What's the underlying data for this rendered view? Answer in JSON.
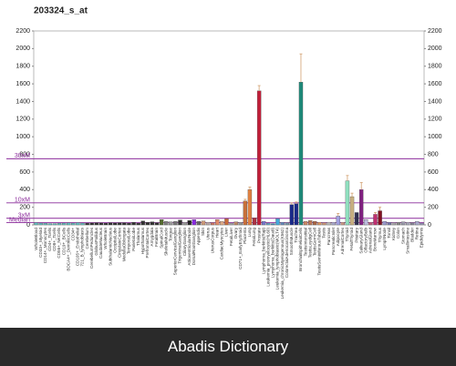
{
  "chart_data": {
    "type": "bar",
    "title": "203324_s_at",
    "categories": [
      "WholeBlood",
      "CD33+_Myeloid",
      "CD14+_Monocytes",
      "CD4+_Tcells",
      "CD8+_Tcells",
      "CD56+_NKCells",
      "CD19+_BCells",
      "BDCA4+_DentriticCells",
      "CD34+",
      "CD105+_Endothelial",
      "721_B_lymphoblasts",
      "Cerebellum",
      "CerebellumPeduncles",
      "GlobusPallidus",
      "CaudateNucleus",
      "WholeBrain",
      "SubthalamicNucleus",
      "OccipitalLobe",
      "CingulateCortex",
      "MedullaOblongata",
      "TemporalLobe",
      "ParietalLobe",
      "Thalamus",
      "Hypothalamus",
      "PrefrontalCortex",
      "Amygdala",
      "FetalBrain",
      "SpinalCord",
      "SkeletalMuscle",
      "Tongue",
      "SuperiorCervicalGanglion",
      "TrigeminalGanglion",
      "CiliaryGanglion",
      "AtrioventricularNode",
      "DorsalRootGanglion",
      "Appendix",
      "Skin",
      "Uterus",
      "UterusCorpus",
      "Heart",
      "CardiacMyocytes",
      "Liver",
      "FetalLiver",
      "Ovary",
      "CD71+_EarlyErythroid",
      "Placenta",
      "Lung",
      "FetalLung",
      "Prostate",
      "Lymphoma_burkitts(Raji)",
      "Leukemia_promyelocytic(HL60)",
      "Lymphoma_burkitts(Daudi)",
      "Leukemia_lymphoblastic(MOLT4)",
      "Leukemia_chronicMyelogenous(K562)",
      "ColorectalAdenocarcinoma",
      "SmoothMuscle",
      "Trachea",
      "BronchialEpithelialCells",
      "TestisInterstitial",
      "TestisLeydigCell",
      "TestisGermCell",
      "TestisSeminiferousTubule",
      "Testis",
      "Pancreas",
      "PancreaticIslet",
      "Adipocyte",
      "AdrenalCortex",
      "Thyroid",
      "FetalThyroid",
      "Pituitary",
      "SalivaryGland",
      "OlfactoryBulb",
      "AdrenalGland",
      "BoneMarrow",
      "Thymus",
      "LymphNode",
      "Tonsil",
      "Kidney",
      "Colon",
      "Stomach",
      "SmallIntestine",
      "Bladder",
      "Retina",
      "Epididymis"
    ],
    "values": [
      25,
      20,
      18,
      15,
      15,
      18,
      20,
      22,
      20,
      25,
      20,
      20,
      22,
      25,
      22,
      20,
      25,
      22,
      25,
      25,
      20,
      30,
      20,
      45,
      30,
      35,
      25,
      60,
      40,
      35,
      40,
      55,
      30,
      50,
      60,
      40,
      45,
      30,
      25,
      60,
      40,
      70,
      20,
      35,
      30,
      270,
      400,
      80,
      1520,
      40,
      20,
      15,
      70,
      30,
      25,
      230,
      240,
      1620,
      40,
      50,
      40,
      30,
      25,
      30,
      30,
      100,
      30,
      500,
      320,
      140,
      400,
      60,
      30,
      120,
      160,
      40,
      30,
      25,
      30,
      35,
      30,
      25,
      40,
      20
    ],
    "errors": [
      0,
      0,
      0,
      0,
      0,
      0,
      0,
      0,
      0,
      0,
      0,
      0,
      0,
      0,
      0,
      0,
      0,
      0,
      0,
      0,
      0,
      0,
      0,
      0,
      0,
      0,
      0,
      0,
      0,
      0,
      0,
      0,
      0,
      0,
      0,
      0,
      0,
      0,
      0,
      0,
      0,
      0,
      0,
      0,
      0,
      20,
      30,
      0,
      60,
      0,
      0,
      0,
      0,
      0,
      0,
      20,
      20,
      320,
      0,
      0,
      0,
      0,
      0,
      0,
      0,
      30,
      0,
      60,
      40,
      0,
      80,
      0,
      0,
      20,
      40,
      0,
      0,
      0,
      0,
      0,
      0,
      0,
      0,
      0
    ],
    "colors": [
      "#66c2c2",
      "#66c2c2",
      "#66c2c2",
      "#66c2c2",
      "#66c2c2",
      "#66c2c2",
      "#66c2c2",
      "#66c2c2",
      "#66c2c2",
      "#66c2c2",
      "#66c2c2",
      "#333333",
      "#333333",
      "#333333",
      "#333333",
      "#333333",
      "#333333",
      "#333333",
      "#333333",
      "#333333",
      "#333333",
      "#333333",
      "#333333",
      "#333333",
      "#333333",
      "#333333",
      "#333333",
      "#556b2f",
      "#808080",
      "#9a9a9a",
      "#777777",
      "#333333",
      "#999999",
      "#222222",
      "#8a2be2",
      "#666666",
      "#cc9977",
      "#bbaaaa",
      "#cc7766",
      "#e08a6a",
      "#ddaa88",
      "#c86a3a",
      "#aaaaaa",
      "#bb8866",
      "#999999",
      "#c8703a",
      "#e08040",
      "#aa3344",
      "#c0203a",
      "#7777cc",
      "#66aacc",
      "#4488bb",
      "#44aadd",
      "#6688bb",
      "#7799aa",
      "#1a2a8a",
      "#1a2a8a",
      "#1f8a7a",
      "#cc8866",
      "#bb7755",
      "#aa6644",
      "#dd9966",
      "#cc9977",
      "#bbbbbb",
      "#aaaacc",
      "#a0a0e0",
      "#cc9988",
      "#90e0c0",
      "#c8b080",
      "#303050",
      "#802080",
      "#bbbbdd",
      "#c06080",
      "#c03070",
      "#801020",
      "#9999cc",
      "#7777aa",
      "#aaaaaa",
      "#888888",
      "#9999aa",
      "#aaaabb",
      "#888899",
      "#aaaacc",
      "#9999bb"
    ],
    "error_color": "#d2a070",
    "ylim": [
      0,
      2200
    ],
    "yticks": [
      0,
      200,
      400,
      600,
      800,
      1000,
      1200,
      1400,
      1600,
      1800,
      2000,
      2200
    ],
    "ref_lines": [
      {
        "label": "30xM",
        "value": 750
      },
      {
        "label": "10xM",
        "value": 250
      },
      {
        "label": "3xM",
        "value": 75
      },
      {
        "label": "Median",
        "value": 25
      }
    ],
    "ref_color": "#8b2c9b"
  },
  "footer": "Abadis Dictionary"
}
